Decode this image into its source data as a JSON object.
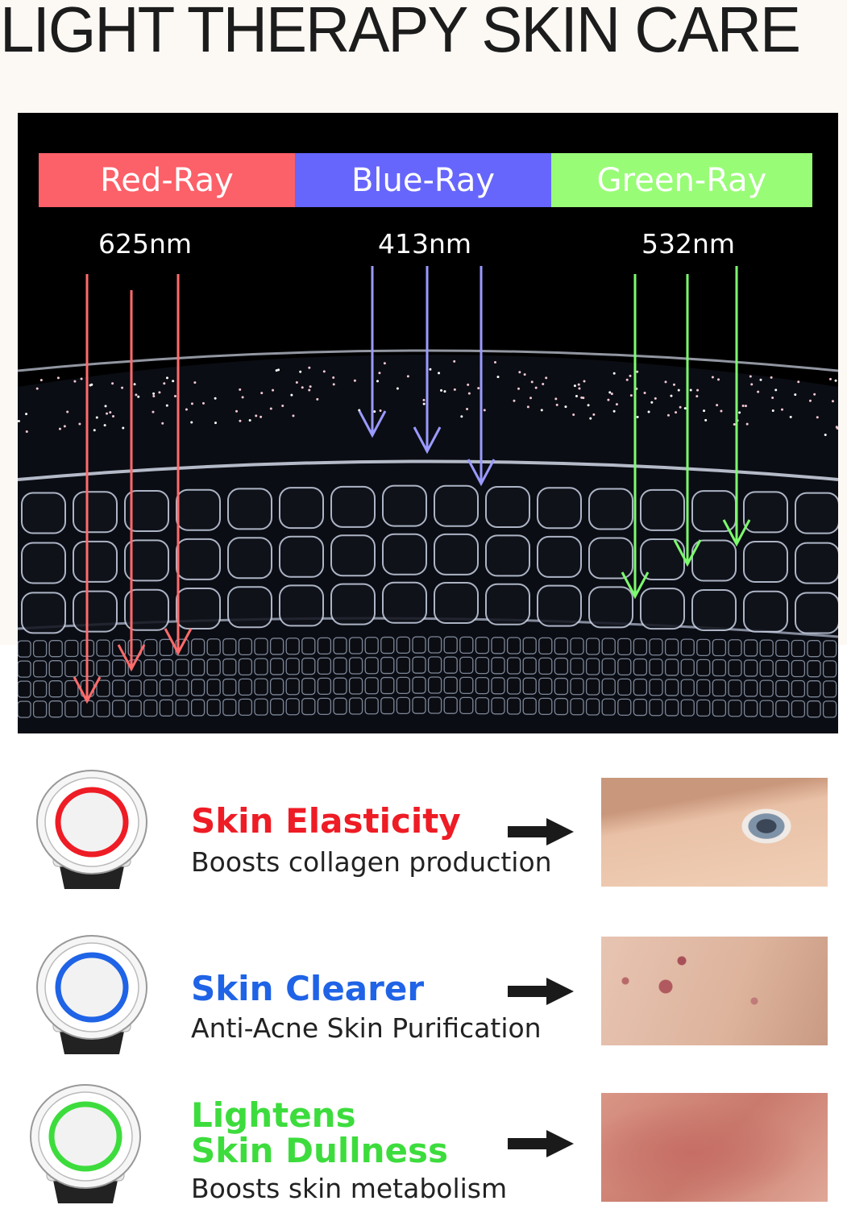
{
  "title": "LIGHT THERAPY SKIN CARE",
  "rays": [
    {
      "label": "Red-Ray",
      "wavelength": "625nm",
      "color": "#fc6068",
      "arrow_color": "#ff6b6b"
    },
    {
      "label": "Blue-Ray",
      "wavelength": "413nm",
      "color": "#6666fc",
      "arrow_color": "#9a9aff"
    },
    {
      "label": "Green-Ray",
      "wavelength": "532nm",
      "color": "#99fc77",
      "arrow_color": "#7cfc6e"
    }
  ],
  "benefits": [
    {
      "title": "Skin Elasticity",
      "subtitle": "Boosts collagen production",
      "color": "#ee1c25",
      "image": "eye-closeup-photo"
    },
    {
      "title": "Skin Clearer",
      "subtitle": "Anti-Acne Skin Purification",
      "color": "#1f63e6",
      "image": "acne-skin-photo"
    },
    {
      "title": "Lightens\nSkin Dullness",
      "subtitle": "Boosts skin metabolism",
      "color": "#3ddc3d",
      "image": "dull-skin-photo"
    }
  ]
}
